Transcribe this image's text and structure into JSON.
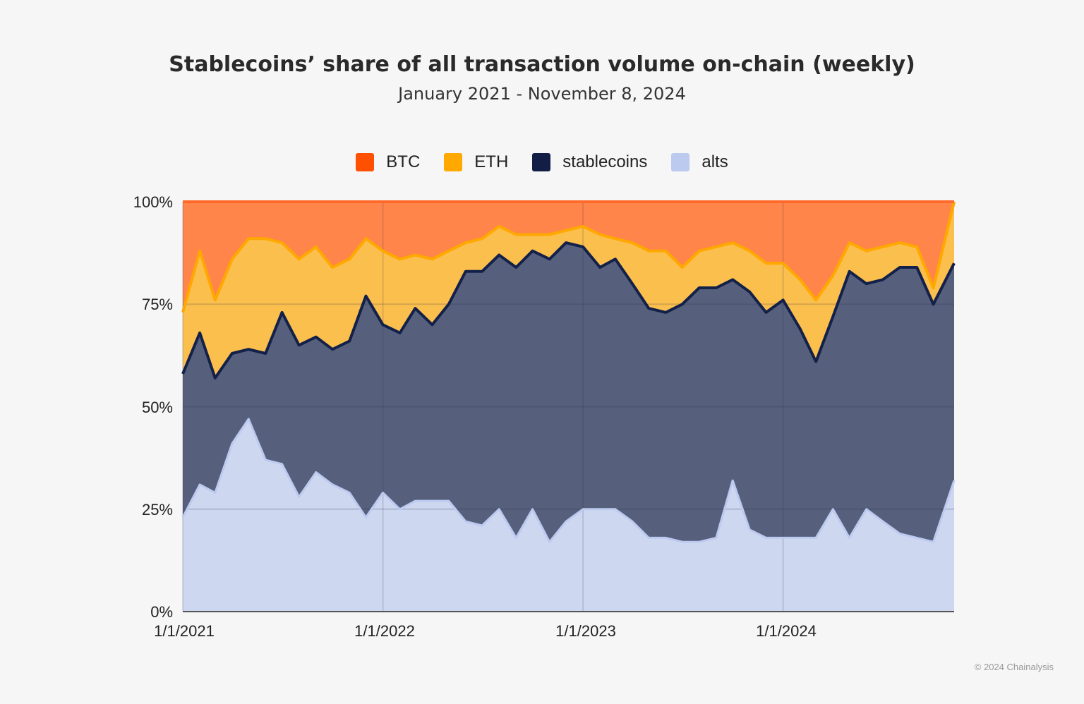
{
  "chart_data": {
    "type": "area",
    "stacked": true,
    "title": "Stablecoins’ share of all transaction volume on-chain (weekly)",
    "subtitle": "January 2021 - November 8, 2024",
    "ylim": [
      0,
      100
    ],
    "y_ticks": [
      "0%",
      "25%",
      "50%",
      "75%",
      "100%"
    ],
    "x_ticks": [
      "1/1/2021",
      "1/1/2022",
      "1/1/2023",
      "1/1/2024"
    ],
    "grid": true,
    "legend_position": "top",
    "x": [
      "2021-01-01",
      "2021-02-01",
      "2021-03-01",
      "2021-04-01",
      "2021-05-01",
      "2021-06-01",
      "2021-07-01",
      "2021-08-01",
      "2021-09-01",
      "2021-10-01",
      "2021-11-01",
      "2021-12-01",
      "2022-01-01",
      "2022-02-01",
      "2022-03-01",
      "2022-04-01",
      "2022-05-01",
      "2022-06-01",
      "2022-07-01",
      "2022-08-01",
      "2022-09-01",
      "2022-10-01",
      "2022-11-01",
      "2022-12-01",
      "2023-01-01",
      "2023-02-01",
      "2023-03-01",
      "2023-04-01",
      "2023-05-01",
      "2023-06-01",
      "2023-07-01",
      "2023-08-01",
      "2023-09-01",
      "2023-10-01",
      "2023-11-01",
      "2023-12-01",
      "2024-01-01",
      "2024-02-01",
      "2024-03-01",
      "2024-04-01",
      "2024-05-01",
      "2024-06-01",
      "2024-07-01",
      "2024-08-01",
      "2024-09-01",
      "2024-10-01",
      "2024-11-08"
    ],
    "series": [
      {
        "name": "alts",
        "color": "#bccaf0",
        "values": [
          23,
          31,
          29,
          41,
          47,
          37,
          36,
          28,
          34,
          31,
          29,
          23,
          29,
          25,
          27,
          27,
          27,
          22,
          21,
          25,
          18,
          25,
          17,
          22,
          25,
          25,
          25,
          22,
          18,
          18,
          17,
          17,
          18,
          32,
          20,
          18,
          18,
          18,
          18,
          25,
          18,
          25,
          22,
          19,
          18,
          17,
          32
        ]
      },
      {
        "name": "stablecoins",
        "color": "#121e45",
        "values": [
          35,
          37,
          28,
          22,
          17,
          26,
          37,
          37,
          33,
          33,
          37,
          54,
          41,
          43,
          47,
          43,
          48,
          61,
          62,
          62,
          66,
          63,
          69,
          68,
          64,
          59,
          61,
          58,
          56,
          55,
          58,
          62,
          61,
          49,
          58,
          55,
          58,
          51,
          43,
          47,
          65,
          55,
          59,
          65,
          66,
          58,
          53
        ]
      },
      {
        "name": "ETH",
        "color": "#ffa800",
        "values": [
          15,
          20,
          19,
          23,
          27,
          28,
          17,
          21,
          22,
          20,
          20,
          14,
          18,
          18,
          13,
          16,
          13,
          7,
          8,
          7,
          8,
          4,
          6,
          3,
          5,
          8,
          5,
          10,
          14,
          15,
          9,
          9,
          10,
          9,
          10,
          12,
          9,
          12,
          15,
          10,
          7,
          8,
          8,
          6,
          5,
          4,
          15
        ]
      },
      {
        "name": "BTC",
        "color": "#ff5000",
        "values": [
          27,
          12,
          24,
          14,
          9,
          9,
          10,
          14,
          11,
          16,
          14,
          9,
          12,
          14,
          13,
          14,
          12,
          10,
          9,
          6,
          8,
          8,
          8,
          7,
          6,
          8,
          9,
          10,
          12,
          12,
          16,
          12,
          11,
          10,
          12,
          15,
          15,
          19,
          24,
          18,
          10,
          12,
          11,
          10,
          11,
          21,
          0
        ]
      }
    ]
  },
  "legend": [
    {
      "label": "BTC",
      "color": "#ff5000"
    },
    {
      "label": "ETH",
      "color": "#ffa800"
    },
    {
      "label": "stablecoins",
      "color": "#121e45"
    },
    {
      "label": "alts",
      "color": "#bccaf0"
    }
  ],
  "copyright": "© 2024 Chainalysis"
}
